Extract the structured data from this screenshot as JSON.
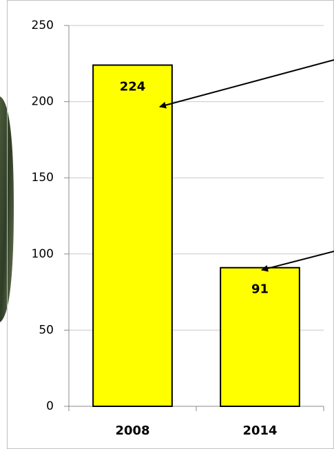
{
  "chart_data": {
    "type": "bar",
    "categories": [
      "2008",
      "2014"
    ],
    "values": [
      224,
      91
    ],
    "color": "#ffff00",
    "ylim": [
      0,
      250
    ],
    "yticks": [
      0,
      50,
      100,
      150,
      200,
      250
    ],
    "grid": true
  }
}
